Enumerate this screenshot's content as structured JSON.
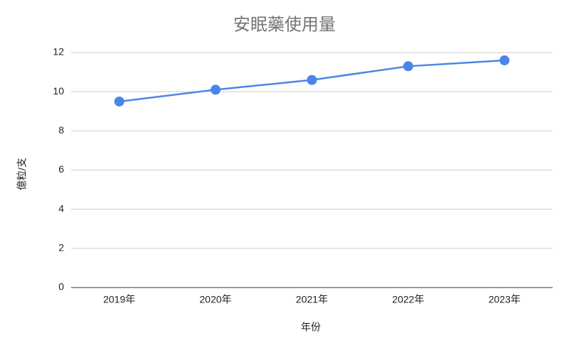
{
  "chart_data": {
    "type": "line",
    "title": "安眠藥使用量",
    "x_label": "年份",
    "y_label": "億粒/支",
    "categories": [
      "2019年",
      "2020年",
      "2021年",
      "2022年",
      "2023年"
    ],
    "series": [
      {
        "name": "億粒/支",
        "color": "#4a86e8",
        "values": [
          9.5,
          10.1,
          10.6,
          11.3,
          11.6
        ]
      }
    ],
    "ylim": [
      0,
      12
    ],
    "yticks": [
      0,
      2,
      4,
      6,
      8,
      10,
      12
    ],
    "grid": true
  }
}
